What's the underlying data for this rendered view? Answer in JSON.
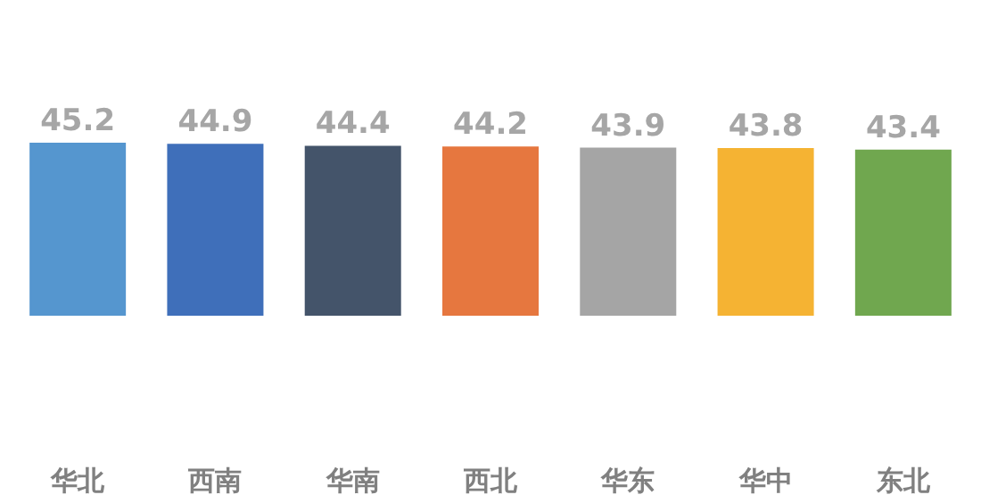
{
  "chart_data": {
    "type": "bar",
    "categories": [
      "华北",
      "西南",
      "华南",
      "西北",
      "华东",
      "华中",
      "东北"
    ],
    "values": [
      45.2,
      44.9,
      44.4,
      44.2,
      43.9,
      43.8,
      43.4
    ],
    "colors": [
      "#5596cf",
      "#3f6fba",
      "#44546a",
      "#e6773f",
      "#a5a5a5",
      "#f5b333",
      "#70a74f"
    ],
    "data_labels": true,
    "tick_labels": "x",
    "legend": false
  }
}
